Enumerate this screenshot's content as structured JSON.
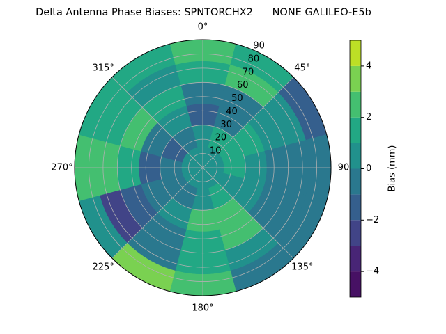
{
  "chart_data": {
    "type": "polar-contour",
    "title": "Delta Antenna Phase Biases: SPNTORCHX2      NONE GALILEO-E5b",
    "azimuths": [
      0,
      30,
      60,
      90,
      120,
      150,
      180,
      210,
      240,
      270,
      300,
      330
    ],
    "zeniths": [
      7.5,
      22.5,
      37.5,
      52.5,
      67.5,
      82.5
    ],
    "z": [
      [
        0.5,
        0.5,
        0.5,
        0.5,
        0.5,
        0.5,
        0.5,
        0.5,
        0.5,
        0.5,
        0.5,
        0.5
      ],
      [
        0,
        1,
        1.5,
        1,
        0.5,
        1.5,
        0,
        -0.5,
        -1,
        -1,
        -1.5,
        -0.5
      ],
      [
        -1.5,
        -1,
        1,
        0,
        0,
        2.5,
        2,
        0.5,
        -0.5,
        -1.5,
        -1,
        0
      ],
      [
        -1,
        -1,
        0,
        -1,
        -0.5,
        2.5,
        1,
        -1,
        -1.5,
        1,
        2,
        1
      ],
      [
        1.5,
        2.5,
        0,
        -1,
        -1,
        0,
        1,
        -1,
        -3,
        2.5,
        1.5,
        0
      ],
      [
        2,
        1,
        -2,
        -1,
        -1,
        -1,
        2,
        3.5,
        0,
        2,
        1,
        1
      ]
    ],
    "rlim": [
      0,
      90
    ],
    "rticks": [
      10,
      20,
      30,
      40,
      50,
      60,
      70,
      80,
      90
    ],
    "thetaticks": [
      {
        "value": 0,
        "label": "0°"
      },
      {
        "value": 45,
        "label": "45°"
      },
      90,
      {
        "value": 135,
        "label": "135°"
      },
      {
        "value": 180,
        "label": "180°"
      },
      {
        "value": 225,
        "label": "225°"
      },
      {
        "value": 270,
        "label": "270°"
      },
      {
        "value": 315,
        "label": "315°"
      }
    ],
    "grid": true,
    "colorbar": {
      "label": "Bias (mm)",
      "levels": [
        -5,
        -4,
        -3,
        -2,
        -1,
        0,
        1,
        2,
        3,
        4,
        5
      ],
      "colors": [
        "#471164",
        "#482576",
        "#414487",
        "#355f8d",
        "#2a788e",
        "#21918c",
        "#22a884",
        "#44bf70",
        "#7ad151",
        "#bddf26"
      ],
      "ticks": [
        {
          "value": -4,
          "label": "−4"
        },
        {
          "value": -2,
          "label": "−2"
        },
        0,
        2,
        4
      ]
    }
  }
}
